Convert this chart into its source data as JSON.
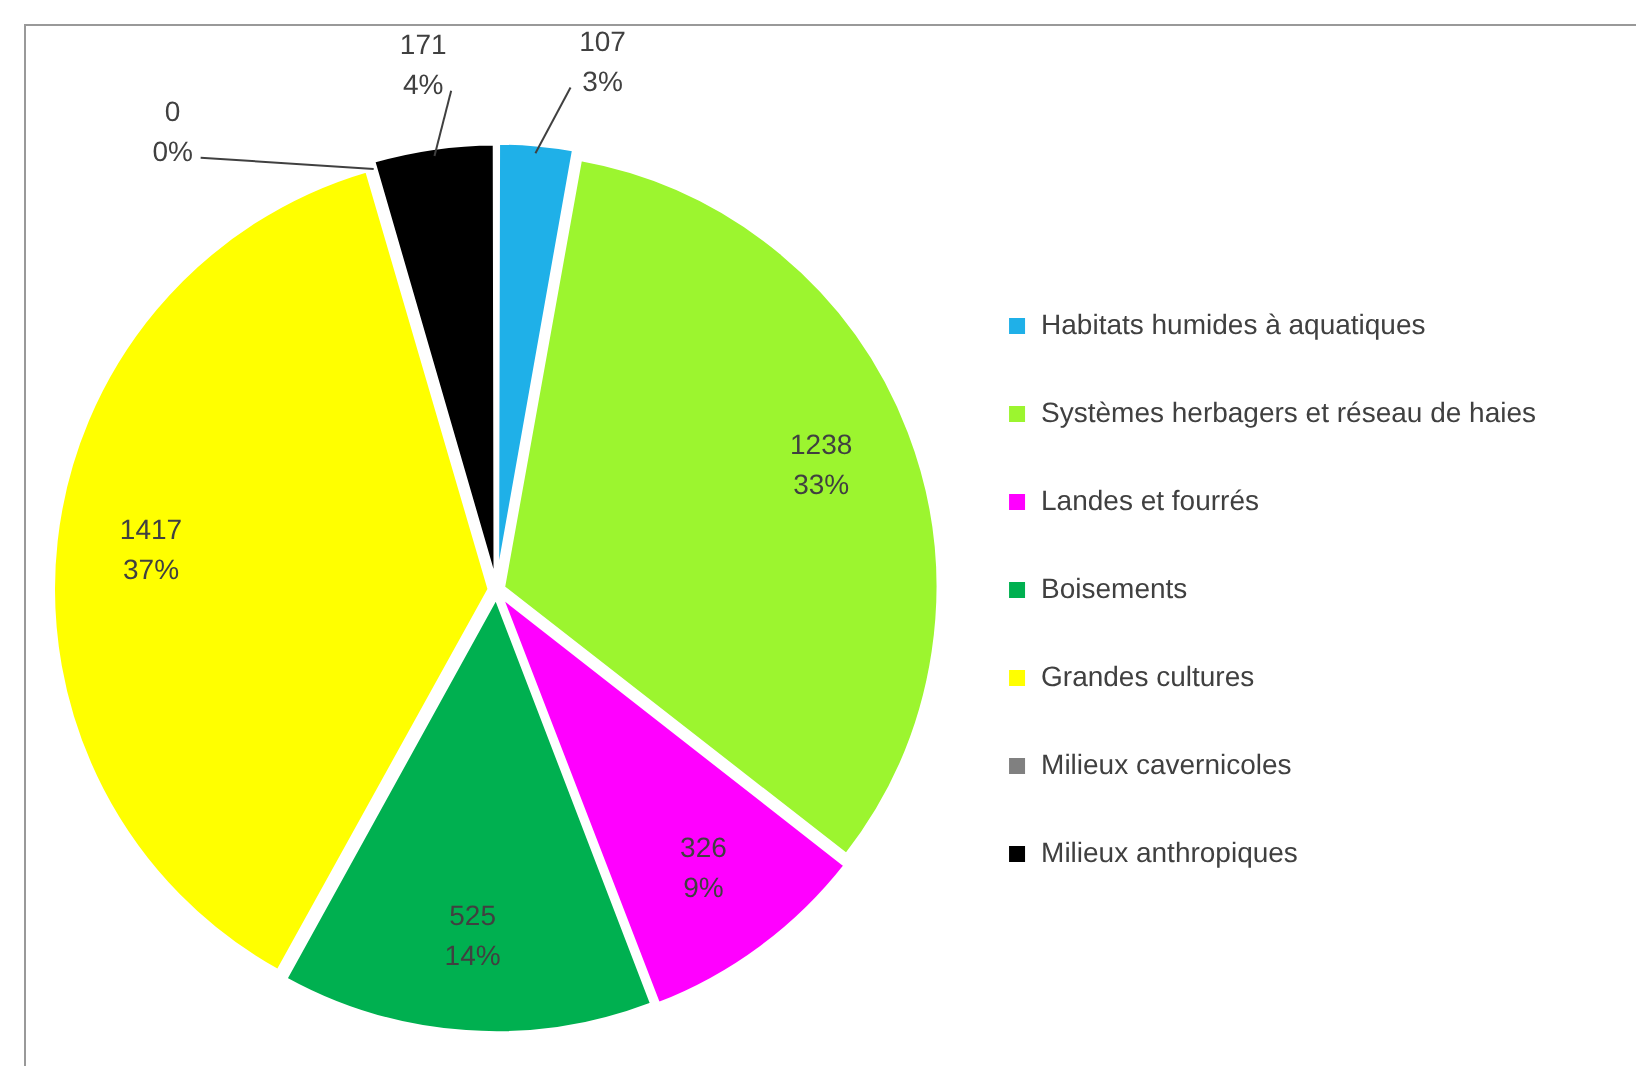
{
  "chart_data": {
    "type": "pie",
    "categories": [
      "Habitats humides à aquatiques",
      "Systèmes herbagers et réseau de haies",
      "Landes et fourrés",
      "Boisements",
      "Grandes cultures",
      "Milieux cavernicoles",
      "Milieux anthropiques"
    ],
    "values": [
      107,
      1238,
      326,
      525,
      1417,
      0,
      171
    ],
    "colors": [
      "#1fb0e8",
      "#9cf52f",
      "#ff00ff",
      "#00b050",
      "#ffff00",
      "#808080",
      "#000000"
    ],
    "value_labels": [
      "107\n3%",
      "1238\n33%",
      "326\n9%",
      "525\n14%",
      "1417\n37%",
      "0\n0%",
      "171\n4%"
    ],
    "legend": "right"
  }
}
